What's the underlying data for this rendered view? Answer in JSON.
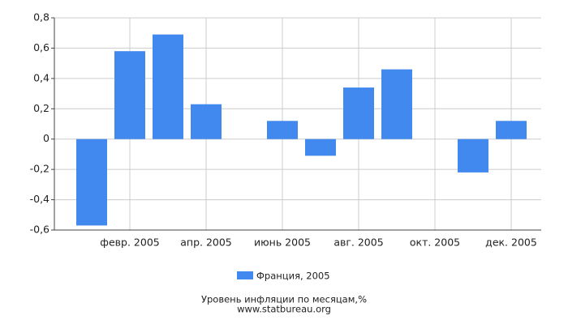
{
  "chart_data": {
    "type": "bar",
    "title": "Уровень инфляции по месяцам,%",
    "source": "www.statbureau.org",
    "categories": [
      null,
      "февр. 2005",
      null,
      "апр. 2005",
      null,
      "июнь 2005",
      null,
      "авг. 2005",
      null,
      "окт. 2005",
      null,
      "дек. 2005"
    ],
    "series": [
      {
        "name": "Франция, 2005",
        "color": "#4189ee",
        "values": [
          -0.57,
          0.58,
          0.69,
          0.23,
          0,
          0.12,
          -0.11,
          0.34,
          0.46,
          0,
          -0.22,
          0.12
        ]
      }
    ],
    "ylim": [
      -0.6,
      0.8
    ],
    "yticks": [
      {
        "value": -0.6,
        "label": "-0,6"
      },
      {
        "value": -0.4,
        "label": "-0,4"
      },
      {
        "value": -0.2,
        "label": "-0,2"
      },
      0,
      {
        "value": 0.2,
        "label": "0,2"
      },
      {
        "value": 0.4,
        "label": "0,4"
      },
      {
        "value": 0.6,
        "label": "0,6"
      },
      {
        "value": 0.8,
        "label": "0,8"
      }
    ],
    "grid": true,
    "legend": "bottom"
  }
}
